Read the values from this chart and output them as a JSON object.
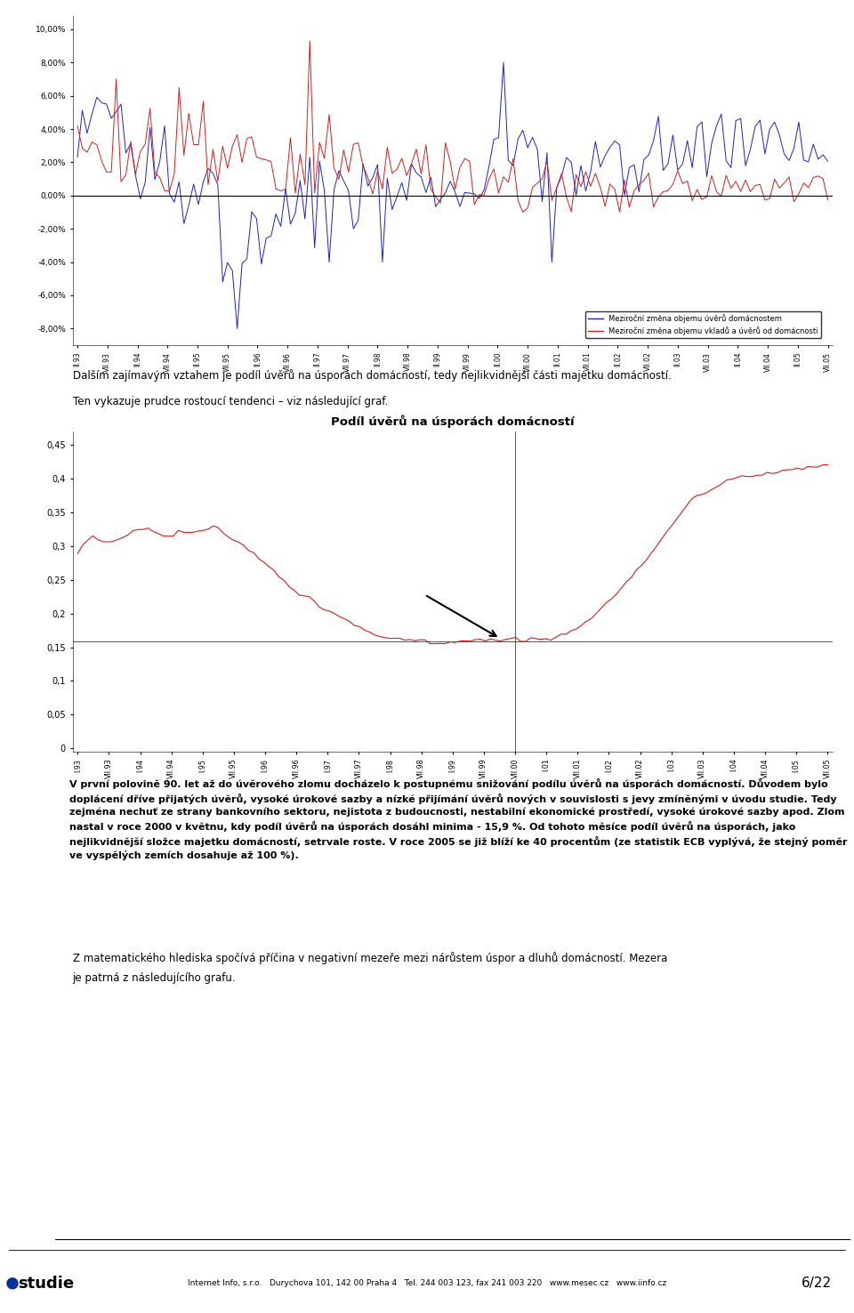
{
  "page_bg": "#ffffff",
  "chart1": {
    "yticks": [
      "-8,00%",
      "-6,00%",
      "-4,00%",
      "-2,00%",
      "0,00%",
      "2,00%",
      "4,00%",
      "6,00%",
      "8,00%",
      "10,00%"
    ],
    "yvalues": [
      -0.08,
      -0.06,
      -0.04,
      -0.02,
      0.0,
      0.02,
      0.04,
      0.06,
      0.08,
      0.1
    ],
    "ylim": [
      -0.09,
      0.108
    ],
    "legend1": "Meziroční změna objemu úvěrů domácnostem",
    "legend2": "Meziroční změna objemu vkladů a úvěrů od domácnosti",
    "line1_color": "#2222bb",
    "line2_color": "#cc2222",
    "xtick_labels": [
      "II.93",
      "VII.93",
      "II.94",
      "VII.94",
      "II.95",
      "VII.95",
      "II.96",
      "VII.96",
      "II.97",
      "VII.97",
      "II.98",
      "VII.98",
      "II.99",
      "VII.99",
      "II.00",
      "VII.00",
      "II.01",
      "VII.01",
      "II.02",
      "VII.02",
      "II.03",
      "VII.03",
      "II.04",
      "VII.04",
      "II.05",
      "VII.05"
    ]
  },
  "chart2": {
    "title": "Podíl úvěrů na úsporách domácností",
    "yticks": [
      "0",
      "0,05",
      "0,1",
      "0,15",
      "0,2",
      "0,25",
      "0,3",
      "0,35",
      "0,4",
      "0,45"
    ],
    "yvalues": [
      0.0,
      0.05,
      0.1,
      0.15,
      0.2,
      0.25,
      0.3,
      0.35,
      0.4,
      0.45
    ],
    "ylim": [
      -0.005,
      0.47
    ],
    "line_color": "#cc2222",
    "hline_y": 0.159,
    "xtick_labels": [
      "I.93",
      "VII.93",
      "I.94",
      "VII.94",
      "I.95",
      "VII.95",
      "I.96",
      "VII.96",
      "I.97",
      "VII.97",
      "I.98",
      "VII.98",
      "I.99",
      "VII.99",
      "VII.00",
      "I.01",
      "VII.01",
      "I.02",
      "VII.02",
      "I.03",
      "VII.03",
      "I.04",
      "VII.04",
      "I.05",
      "VII.05"
    ]
  },
  "text1": "Dalším zajímavým vztahem je podíl úvěrů na úsporách domácností, tedy nejlikvidnější části majetku domácností.",
  "text2": "Ten vykazuje prudce rostoucí tendenci – viz následující graf.",
  "highlight_text": "V první polovině 90. let až do úvěrového zlomu docházelo k postupnému snižování podílu úvěrů na úsporách domácností. Důvodem bylo doplácení dříve přijatých úvěrů, vysoké úrokové sazby a nízké přijímání úvěrů nových v souvislosti s jevy zmíněnými v úvodu studie. Tedy zejména nechuť ze strany bankovního sektoru, nejistota z budoucnosti, nestabilní ekonomické prostředí, vysoké úrokové sazby apod. Zlom nastal v roce 2000 v květnu, kdy podíl úvěrů na úsporách dosáhl minima - 15,9 %. Od tohoto měsíce podíl úvěrů na úsporách, jako nejlikvidnější složce majetku domácností, setrvale roste. V roce 2005 se již blíží ke 40 procentům (ze statistik ECB vyplývá, že stejný poměr ve vyspělých zemích dosahuje až 100 %).",
  "text3_line1": "Z matematického hlediska spočívá příčina v negativní mezeře mezi nárůstem úspor a dluhů domácností. Mezera",
  "text3_line2": "je patrná z následujícího grafu.",
  "footer_left": "studie",
  "footer_right": "6/22",
  "footer_company": "Internet Info, s.r.o.   Durychova 101, 142 00 Praha 4   Tel. 244 003 123, fax 241 003 220   www.mesec.cz   www.iinfo.cz",
  "highlight_bg": "#fce8c8",
  "border_color": "#cccccc"
}
